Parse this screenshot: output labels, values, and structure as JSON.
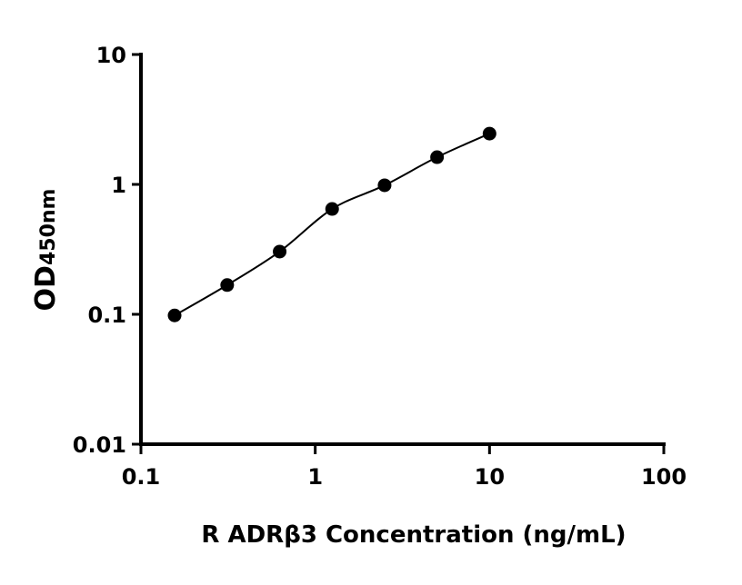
{
  "chart_data": {
    "type": "scatter",
    "title": "",
    "xlabel": "R ADRβ3 Concentration (ng/mL)",
    "ylabel_main": "OD",
    "ylabel_sub": "450nm",
    "x_scale": "log",
    "y_scale": "log",
    "xlim": [
      0.1,
      100
    ],
    "ylim": [
      0.01,
      10
    ],
    "x_ticks": [
      0.1,
      1,
      10,
      100
    ],
    "x_tick_labels": [
      "0.1",
      "1",
      "10",
      "100"
    ],
    "y_ticks": [
      0.01,
      0.1,
      1,
      10
    ],
    "y_tick_labels": [
      "0.01",
      "0.1",
      "1",
      "10"
    ],
    "grid": false,
    "legend": "none",
    "fit_curve": true,
    "marker_color": "#000000",
    "series": [
      {
        "x": [
          0.156,
          0.3125,
          0.625,
          1.25,
          2.5,
          5,
          10
        ],
        "y": [
          0.098,
          0.168,
          0.304,
          0.647,
          0.985,
          1.62,
          2.46
        ]
      }
    ]
  }
}
